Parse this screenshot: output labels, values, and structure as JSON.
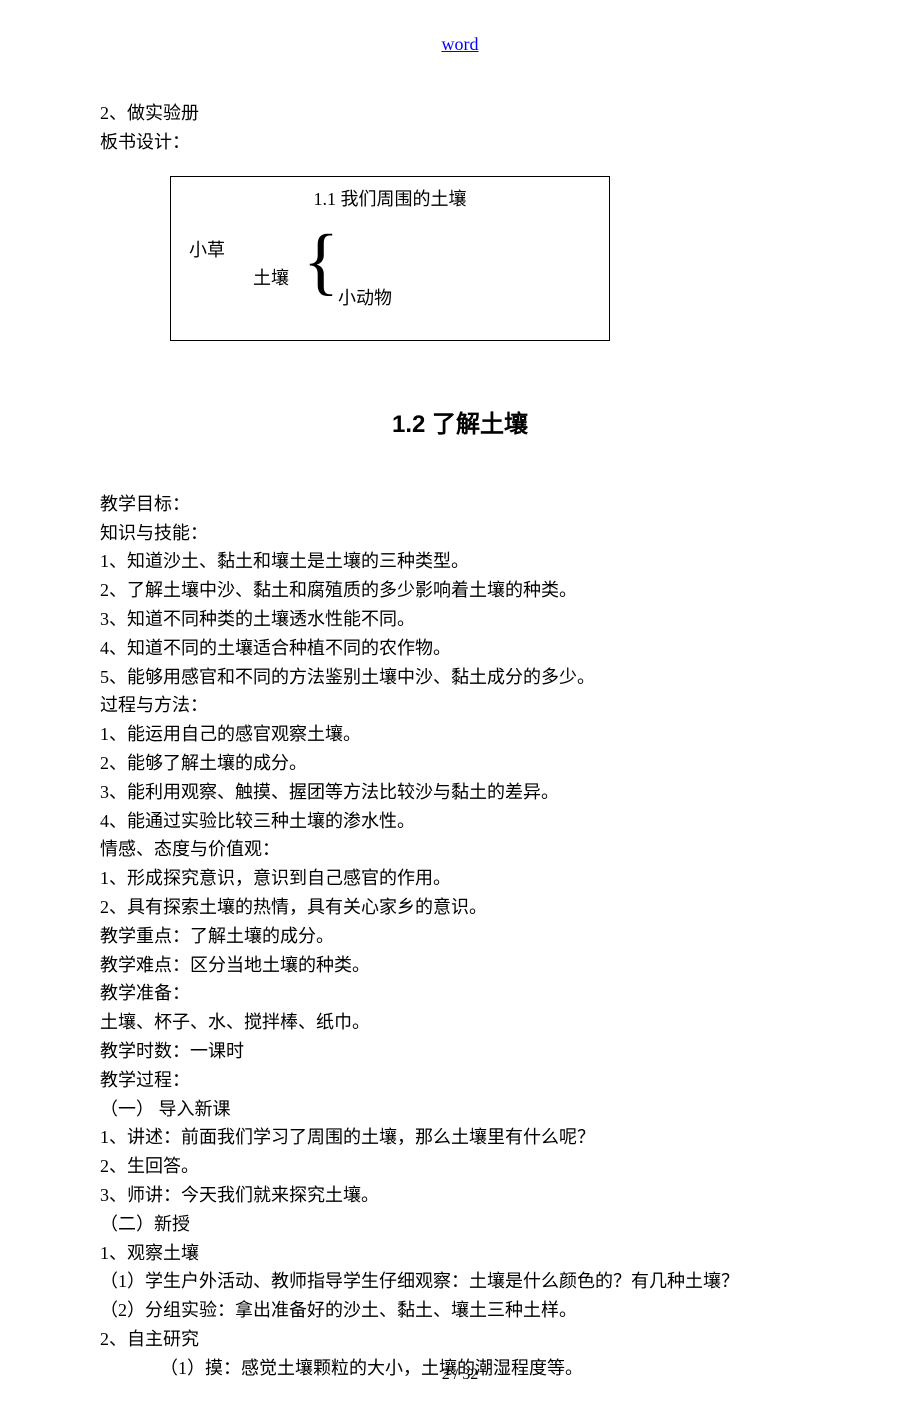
{
  "header": {
    "link_text": "word"
  },
  "intro": {
    "line1": "2、做实验册",
    "line2": "板书设计："
  },
  "diagram": {
    "title": "1.1 我们周围的土壤",
    "grass": "小草",
    "soil": "土壤",
    "animal": "小动物",
    "border_color": "#000000"
  },
  "section_title": "1.2 了解土壤",
  "content": {
    "l1": "教学目标：",
    "l2": "知识与技能：",
    "l3": "1、知道沙土、黏土和壤土是土壤的三种类型。",
    "l4": "2、了解土壤中沙、黏土和腐殖质的多少影响着土壤的种类。",
    "l5": "3、知道不同种类的土壤透水性能不同。",
    "l6": "4、知道不同的土壤适合种植不同的农作物。",
    "l7": "5、能够用感官和不同的方法鉴别土壤中沙、黏土成分的多少。",
    "l8": "过程与方法：",
    "l9": "1、能运用自己的感官观察土壤。",
    "l10": "2、能够了解土壤的成分。",
    "l11": "3、能利用观察、触摸、握团等方法比较沙与黏土的差异。",
    "l12": "4、能通过实验比较三种土壤的渗水性。",
    "l13": "情感、态度与价值观：",
    "l14": "1、形成探究意识，意识到自己感官的作用。",
    "l15": "2、具有探索土壤的热情，具有关心家乡的意识。",
    "l16": "教学重点：了解土壤的成分。",
    "l17": "教学难点：区分当地土壤的种类。",
    "l18": "教学准备：",
    "l19": "土壤、杯子、水、搅拌棒、纸巾。",
    "l20": "教学时数：一课时",
    "l21": "教学过程：",
    "l22": "（一）    导入新课",
    "l23": "1、讲述：前面我们学习了周围的土壤，那么土壤里有什么呢？",
    "l24": "2、生回答。",
    "l25": "3、师讲：今天我们就来探究土壤。",
    "l26": "（二）新授",
    "l27": "1、观察土壤",
    "l28": "（1）学生户外活动、教师指导学生仔细观察：土壤是什么颜色的？有几种土壤？",
    "l29": "（2）分组实验：拿出准备好的沙土、黏土、壤土三种土样。",
    "l30": "2、自主研究",
    "l31": "（1）摸：感觉土壤颗粒的大小，土壤的潮湿程度等。"
  },
  "footer": {
    "page": "2 / 32"
  },
  "style": {
    "page_bg": "#ffffff",
    "text_color": "#000000",
    "link_color": "#0000ff",
    "body_fontsize": 18,
    "title_fontsize": 24,
    "font_family_body": "SimSun",
    "font_family_title": "SimHei"
  }
}
